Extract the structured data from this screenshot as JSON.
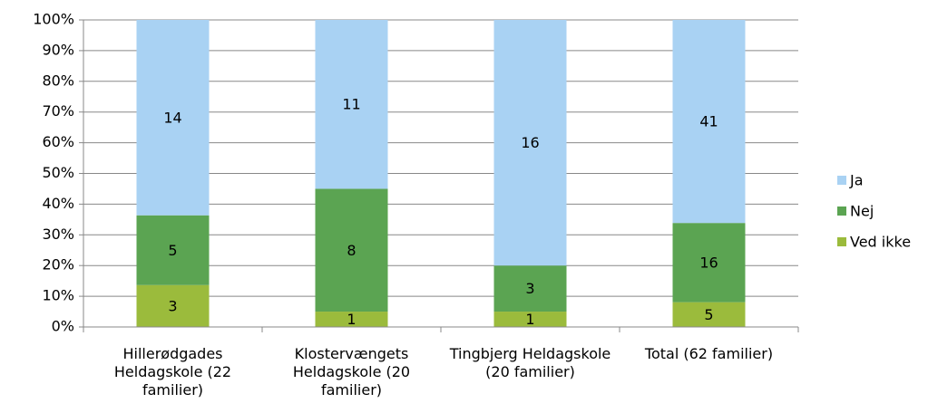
{
  "chart_data": {
    "type": "bar",
    "stacking": "percent",
    "categories": [
      "Hillerødgades Heldagskole (22 familier)",
      "Klostervængets Heldagskole (20 familier)",
      "Tingbjerg Heldagskole (20 familier)",
      "Total (62 familier)"
    ],
    "series": [
      {
        "name": "Ved ikke",
        "color": "#9bbb3c",
        "values": [
          3,
          1,
          1,
          5
        ]
      },
      {
        "name": "Nej",
        "color": "#5ba452",
        "values": [
          5,
          8,
          3,
          16
        ]
      },
      {
        "name": "Ja",
        "color": "#a9d2f3",
        "values": [
          14,
          11,
          16,
          41
        ]
      }
    ],
    "ylim": [
      0,
      100
    ],
    "yticks": [
      {
        "value": 0,
        "label": "0%"
      },
      {
        "value": 10,
        "label": "10%"
      },
      {
        "value": 20,
        "label": "20%"
      },
      {
        "value": 30,
        "label": "30%"
      },
      {
        "value": 40,
        "label": "40%"
      },
      {
        "value": 50,
        "label": "50%"
      },
      {
        "value": 60,
        "label": "60%"
      },
      {
        "value": 70,
        "label": "70%"
      },
      {
        "value": 80,
        "label": "80%"
      },
      {
        "value": 90,
        "label": "90%"
      },
      {
        "value": 100,
        "label": "100%"
      }
    ],
    "grid": true,
    "legend": "right"
  }
}
